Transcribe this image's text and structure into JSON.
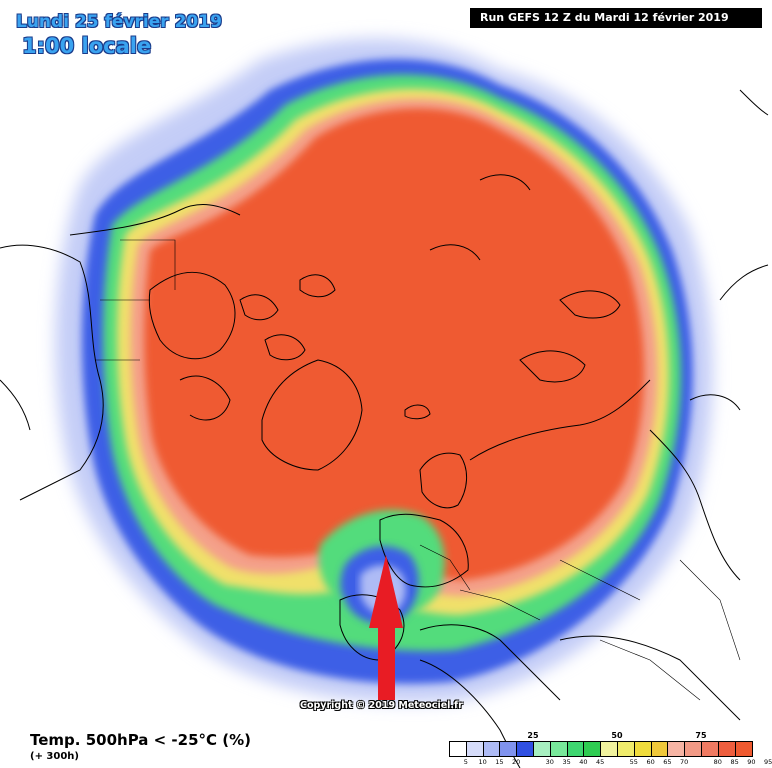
{
  "header": {
    "date_title": "Lundi 25 février 2019",
    "time_title": "1:00 locale",
    "run_info": "Run GEFS 12 Z du Mardi 12 février 2019"
  },
  "map": {
    "projection": "polar-stereographic, north pole",
    "field": "probability of 500 hPa temperature below -25°C",
    "arrow": {
      "color": "#e81c24",
      "pointing": "up",
      "target": "western Europe"
    },
    "coastline_color": "#000000"
  },
  "footer": {
    "variable": "Temp. 500hPa < -25°C (%)",
    "lead_time": "(+ 300h)",
    "copyright": "Copyright © 2019 Meteociel.fr"
  },
  "legend": {
    "major_labels": [
      {
        "text": "25",
        "after_value": 20
      },
      {
        "text": "50",
        "after_value": 45
      },
      {
        "text": "75",
        "after_value": 70
      }
    ],
    "ticks": [
      "5",
      "10",
      "15",
      "20",
      "30",
      "35",
      "40",
      "45",
      "55",
      "60",
      "65",
      "70",
      "80",
      "85",
      "90",
      "95"
    ],
    "colors": [
      "#ffffff",
      "#d6dcfa",
      "#aebbf5",
      "#8093ee",
      "#3050e2",
      "#a7efc0",
      "#78e89a",
      "#3ed670",
      "#2fcc52",
      "#f0f29e",
      "#f0ec6c",
      "#f0dc3c",
      "#f0c83a",
      "#f6b4a4",
      "#f29a86",
      "#f07a62",
      "#ee5e3e",
      "#ef5a30"
    ]
  }
}
